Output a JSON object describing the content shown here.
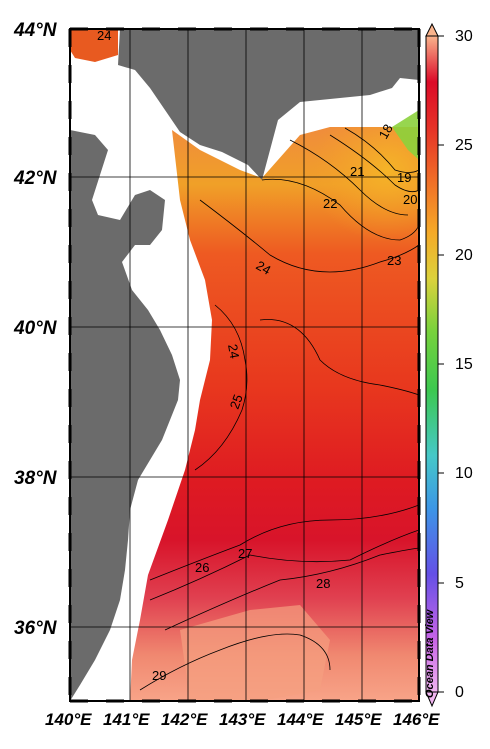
{
  "map": {
    "lat_range": [
      35,
      44
    ],
    "lon_range": [
      140,
      146
    ],
    "lat_labels": [
      "36°N",
      "38°N",
      "40°N",
      "42°N",
      "44°N"
    ],
    "lon_labels": [
      "140°E",
      "141°E",
      "142°E",
      "143°E",
      "144°E",
      "145°E",
      "146°E"
    ],
    "land_color": "#6b6b6b",
    "nodata_color": "#ffffff",
    "grid": true
  },
  "colorbar": {
    "min": 0,
    "max": 30,
    "tick_labels": [
      "0",
      "5",
      "10",
      "15",
      "20",
      "25",
      "30"
    ],
    "colors": [
      "#f0b4f0",
      "#c864e6",
      "#6450e6",
      "#3c96e6",
      "#46c8c8",
      "#3cc850",
      "#78d23c",
      "#dcd23c",
      "#f5aa28",
      "#f06e28",
      "#e63228",
      "#dc0a28",
      "#fab48c"
    ]
  },
  "contour_labels": [
    {
      "text": "24",
      "place": "top-left-corner"
    },
    {
      "text": "18",
      "place": "northeast"
    },
    {
      "text": "19",
      "place": "northeast"
    },
    {
      "text": "21",
      "place": "northeast"
    },
    {
      "text": "20",
      "place": "northeast"
    },
    {
      "text": "22",
      "place": "north-central"
    },
    {
      "text": "23",
      "place": "northeast"
    },
    {
      "text": "24",
      "place": "north-west"
    },
    {
      "text": "24",
      "place": "central-west"
    },
    {
      "text": "25",
      "place": "central"
    },
    {
      "text": "26",
      "place": "south-central"
    },
    {
      "text": "27",
      "place": "south-central"
    },
    {
      "text": "28",
      "place": "south-east"
    },
    {
      "text": "29",
      "place": "south-west"
    }
  ],
  "credit": "Ocean Data View"
}
